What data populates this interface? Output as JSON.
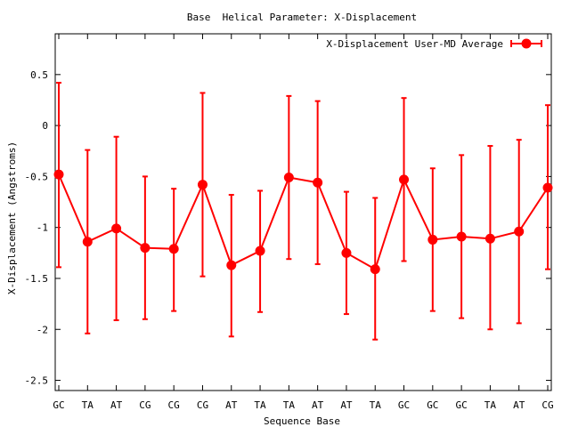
{
  "chart_data": {
    "type": "line",
    "title": "Base  Helical Parameter: X-Displacement",
    "xlabel": "Sequence Base",
    "ylabel": "X-Displacement (Angstroms)",
    "categories": [
      "GC",
      "TA",
      "AT",
      "CG",
      "CG",
      "CG",
      "AT",
      "TA",
      "TA",
      "AT",
      "AT",
      "TA",
      "GC",
      "GC",
      "GC",
      "TA",
      "AT",
      "CG"
    ],
    "ylim": [
      -2.6,
      0.9
    ],
    "yticks": [
      0.5,
      0,
      -0.5,
      -1,
      -1.5,
      -2,
      -2.5
    ],
    "ytick_labels": [
      "0.5",
      "0",
      "-0.5",
      "-1",
      "-1.5",
      "-2",
      "-2.5"
    ],
    "grid": false,
    "legend_position": "top-right",
    "series": [
      {
        "name": "X-Displacement User-MD Average",
        "color": "#ff0000",
        "values": [
          -0.48,
          -1.14,
          -1.01,
          -1.2,
          -1.21,
          -0.58,
          -1.37,
          -1.23,
          -0.51,
          -0.56,
          -1.25,
          -1.41,
          -0.53,
          -1.12,
          -1.09,
          -1.11,
          -1.04,
          -0.61
        ],
        "error_low": [
          -1.39,
          -2.04,
          -1.91,
          -1.9,
          -1.82,
          -1.48,
          -2.07,
          -1.83,
          -1.31,
          -1.36,
          -1.85,
          -2.1,
          -1.33,
          -1.82,
          -1.89,
          -2.0,
          -1.94,
          -1.41
        ],
        "error_high": [
          0.42,
          -0.24,
          -0.11,
          -0.5,
          -0.62,
          0.32,
          -0.68,
          -0.64,
          0.29,
          0.24,
          -0.65,
          -0.71,
          0.27,
          -0.42,
          -0.29,
          -0.2,
          -0.14,
          0.2
        ]
      }
    ]
  }
}
